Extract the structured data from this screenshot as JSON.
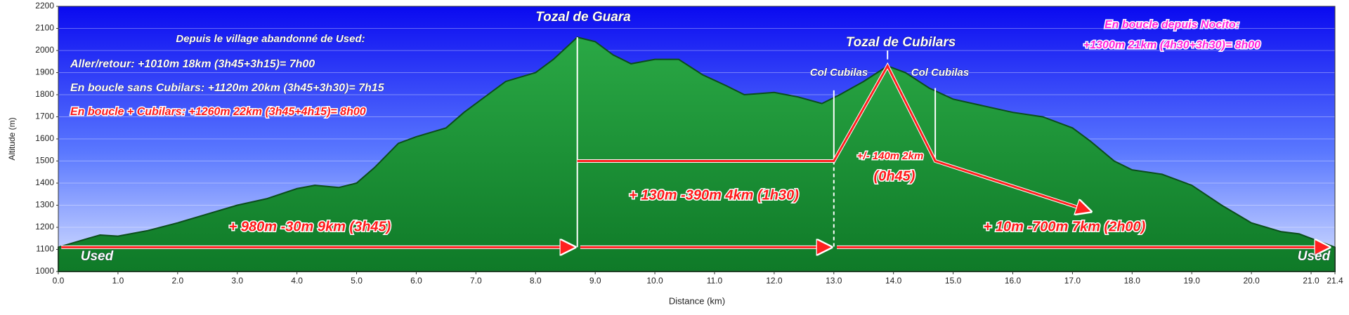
{
  "chart_data": {
    "type": "area",
    "xlabel": "Distance   (km)",
    "ylabel": "Altitude (m)",
    "x": [
      0,
      0.5,
      0.7,
      1.0,
      1.5,
      2.0,
      2.5,
      3.0,
      3.5,
      4.0,
      4.3,
      4.7,
      5.0,
      5.3,
      5.7,
      6.0,
      6.5,
      6.8,
      7.2,
      7.5,
      8.0,
      8.3,
      8.7,
      9.0,
      9.3,
      9.6,
      10.0,
      10.4,
      10.8,
      11.2,
      11.5,
      12.0,
      12.4,
      12.8,
      13.1,
      13.5,
      13.9,
      14.2,
      14.6,
      15.0,
      15.5,
      16.0,
      16.5,
      17.0,
      17.3,
      17.7,
      18.0,
      18.5,
      19.0,
      19.5,
      20.0,
      20.5,
      20.8,
      21.0,
      21.4
    ],
    "values": [
      1110,
      1150,
      1165,
      1160,
      1185,
      1220,
      1260,
      1300,
      1330,
      1375,
      1390,
      1380,
      1400,
      1470,
      1580,
      1610,
      1650,
      1720,
      1800,
      1860,
      1900,
      1960,
      2060,
      2040,
      1980,
      1940,
      1960,
      1960,
      1890,
      1840,
      1800,
      1810,
      1790,
      1760,
      1800,
      1860,
      1930,
      1900,
      1830,
      1780,
      1750,
      1720,
      1700,
      1650,
      1590,
      1500,
      1460,
      1440,
      1390,
      1300,
      1220,
      1180,
      1170,
      1150,
      1110
    ],
    "color": "#1f9a3c",
    "xlim": [
      0,
      21.4
    ],
    "xticks": [
      {
        "value": 0,
        "label": "0.0"
      },
      {
        "value": 1,
        "label": "1.0"
      },
      {
        "value": 2,
        "label": "2.0"
      },
      {
        "value": 3,
        "label": "3.0"
      },
      {
        "value": 4,
        "label": "4.0"
      },
      {
        "value": 5,
        "label": "5.0"
      },
      {
        "value": 6,
        "label": "6.0"
      },
      {
        "value": 7,
        "label": "7.0"
      },
      {
        "value": 8,
        "label": "8.0"
      },
      {
        "value": 9,
        "label": "9.0"
      },
      {
        "value": 10,
        "label": "10.0"
      },
      {
        "value": 11,
        "label": "11.0"
      },
      {
        "value": 12,
        "label": "12.0"
      },
      {
        "value": 13,
        "label": "13.0"
      },
      {
        "value": 14,
        "label": "14.0"
      },
      {
        "value": 15,
        "label": "15.0"
      },
      {
        "value": 16,
        "label": "16.0"
      },
      {
        "value": 17,
        "label": "17.0"
      },
      {
        "value": 18,
        "label": "18.0"
      },
      {
        "value": 19,
        "label": "19.0"
      },
      {
        "value": 20,
        "label": "20.0"
      },
      {
        "value": 21,
        "label": "21.0"
      },
      21.4
    ],
    "ylim": [
      1000,
      2200
    ],
    "yticks": [
      1000,
      1100,
      1200,
      1300,
      1400,
      1500,
      1600,
      1700,
      1800,
      1900,
      2000,
      2100,
      2200
    ],
    "grid": true,
    "annotations": [
      "Tozal de Guara",
      "Tozal de Cubilars",
      "Col Cubilas",
      "Col Cubilas",
      "Depuis le village abandonné de Used:",
      "Aller/retour: +1010m 18km (3h45+3h15)= 7h00",
      "En boucle sans Cubilars: +1120m 20km (3h45+3h30)= 7h15",
      "En boucle + Cubilars: +1260m 22km (3h45+4h15)= 8h00",
      "En boucle depuis Nocito:",
      "+1300m 21km (4h30+3h30)= 8h00",
      "+ 980m -30m 9km (3h45)",
      "+ 130m -390m 4km (1h30)",
      "+/- 140m 2km",
      "(0h45)",
      "+ 10m -700m 7km (2h00)",
      "Used",
      "Used"
    ]
  }
}
